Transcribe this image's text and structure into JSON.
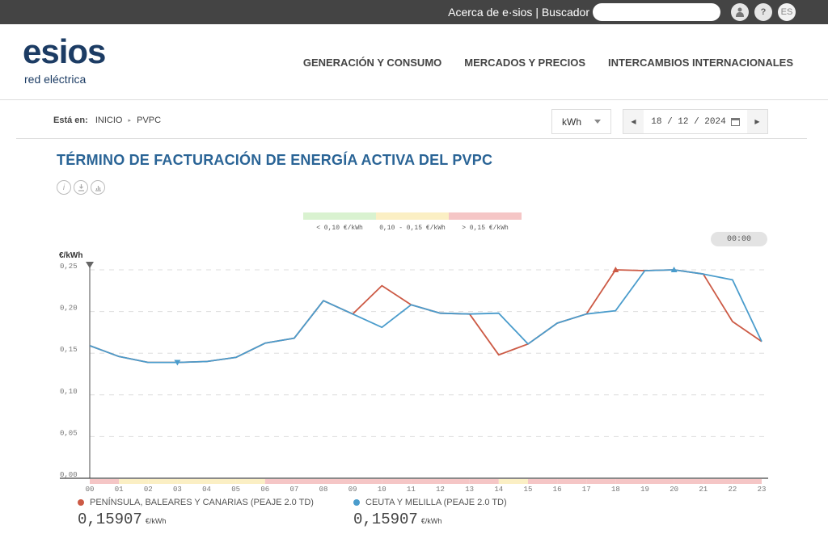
{
  "topbar": {
    "about_link": "Acerca de e·sios",
    "separator": "|",
    "search_label": "Buscador",
    "search_placeholder": "",
    "user_icon": "user-icon",
    "help_label": "?",
    "lang_label": "ES"
  },
  "header": {
    "logo_main": "esios",
    "logo_sub": "red eléctrica",
    "nav": [
      {
        "label": "GENERACIÓN Y CONSUMO"
      },
      {
        "label": "MERCADOS Y PRECIOS"
      },
      {
        "label": "INTERCAMBIOS INTERNACIONALES"
      }
    ]
  },
  "breadcrumb": {
    "prefix": "Está en:",
    "items": [
      "INICIO",
      "PVPC"
    ],
    "separator": "▸"
  },
  "controls": {
    "unit": "kWh",
    "date": "18 / 12 / 2024",
    "prev_icon": "◀",
    "next_icon": "▶"
  },
  "page": {
    "title": "TÉRMINO DE FACTURACIÓN DE ENERGÍA ACTIVA DEL PVPC",
    "action_icons": [
      "info-icon",
      "download-icon",
      "chart-icon"
    ]
  },
  "price_scale": [
    {
      "label": "< 0,10 €/kWh",
      "color": "#d9f2d0"
    },
    {
      "label": "0,10 - 0,15 €/kWh",
      "color": "#fbefc4"
    },
    {
      "label": "> 0,15 €/kWh",
      "color": "#f5c6c6"
    }
  ],
  "time_indicator": "00:00",
  "chart_data": {
    "type": "line",
    "title": "TÉRMINO DE FACTURACIÓN DE ENERGÍA ACTIVA DEL PVPC",
    "xlabel": "",
    "ylabel": "€/kWh",
    "ylim": [
      0,
      0.25
    ],
    "yticks": [
      "0,00",
      "0,05",
      "0,10",
      "0,15",
      "0,20",
      "0,25"
    ],
    "x": [
      "00",
      "01",
      "02",
      "03",
      "04",
      "05",
      "06",
      "07",
      "08",
      "09",
      "10",
      "11",
      "12",
      "13",
      "14",
      "15",
      "16",
      "17",
      "18",
      "19",
      "20",
      "21",
      "22",
      "23"
    ],
    "grid": true,
    "series": [
      {
        "name": "PENÍNSULA, BALEARES Y CANARIAS (PEAJE 2.0 TD)",
        "color": "#cc5a45",
        "values": [
          0.159,
          0.146,
          0.139,
          0.139,
          0.14,
          0.145,
          0.162,
          0.168,
          0.213,
          0.197,
          0.231,
          0.208,
          0.198,
          0.197,
          0.148,
          0.161,
          0.186,
          0.197,
          0.25,
          0.249,
          0.25,
          0.245,
          0.188,
          0.164
        ],
        "max_marker_hour": 18,
        "current_value": "0,15907",
        "unit": "€/kWh"
      },
      {
        "name": "CEUTA Y MELILLA (PEAJE 2.0 TD)",
        "color": "#4a9ccc",
        "values": [
          0.159,
          0.146,
          0.139,
          0.139,
          0.14,
          0.145,
          0.162,
          0.168,
          0.213,
          0.197,
          0.181,
          0.208,
          0.198,
          0.197,
          0.198,
          0.161,
          0.186,
          0.197,
          0.201,
          0.249,
          0.25,
          0.245,
          0.238,
          0.164
        ],
        "min_marker_hour": 3,
        "max_marker_hour": 20,
        "current_value": "0,15907",
        "unit": "€/kWh"
      }
    ],
    "hour_bands": [
      "red",
      "yellow",
      "yellow",
      "yellow",
      "yellow",
      "yellow",
      "red",
      "red",
      "red",
      "red",
      "red",
      "red",
      "red",
      "red",
      "yellow",
      "red",
      "red",
      "red",
      "red",
      "red",
      "red",
      "red",
      "red",
      "red"
    ],
    "legend_position": "bottom"
  }
}
